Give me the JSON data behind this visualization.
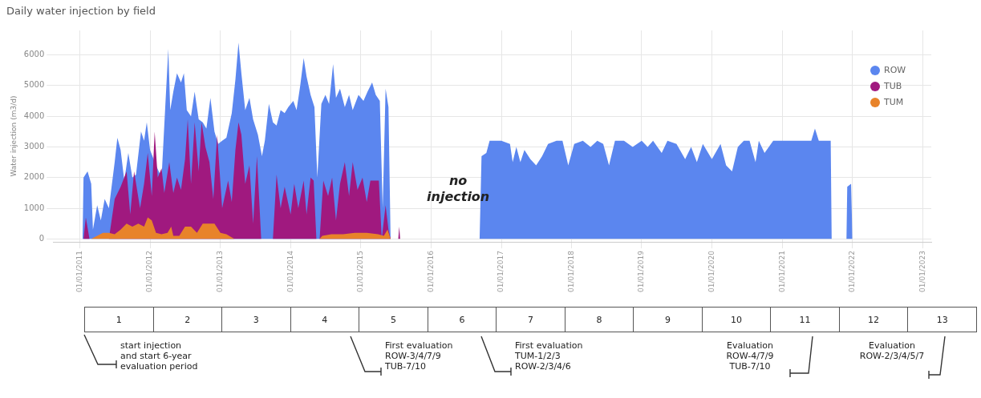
{
  "chart_data": {
    "type": "area",
    "title": "Daily water injection by field",
    "ylabel": "Water injection (m3/d)",
    "xlim": [
      "2010-08-15",
      "2023-02-15"
    ],
    "xticks": [
      {
        "value": "2011-01-01",
        "label": "01/01/2011"
      },
      {
        "value": "2012-01-01",
        "label": "01/01/2012"
      },
      {
        "value": "2013-01-01",
        "label": "01/01/2013"
      },
      {
        "value": "2014-01-01",
        "label": "01/01/2014"
      },
      {
        "value": "2015-01-01",
        "label": "01/01/2015"
      },
      {
        "value": "2016-01-01",
        "label": "01/01/2016"
      },
      {
        "value": "2017-01-01",
        "label": "01/01/2017"
      },
      {
        "value": "2018-01-01",
        "label": "01/01/2018"
      },
      {
        "value": "2019-01-01",
        "label": "01/01/2019"
      },
      {
        "value": "2020-01-01",
        "label": "01/01/2020"
      },
      {
        "value": "2021-01-01",
        "label": "01/01/2021"
      },
      {
        "value": "2022-01-01",
        "label": "01/01/2022"
      },
      {
        "value": "2023-01-01",
        "label": "01/01/2023"
      }
    ],
    "ylim": [
      -100,
      6800
    ],
    "yticks": [
      0,
      1000,
      2000,
      3000,
      4000,
      5000,
      6000
    ],
    "grid": true,
    "legend": "top right",
    "annotations": [
      "no\ninjection",
      "1",
      "2",
      "3",
      "4",
      "5",
      "6",
      "7",
      "8",
      "9",
      "10",
      "11",
      "12",
      "13",
      "start injection\nand start 6-year\nevaluation period",
      "First evaluation\nROW-3/4/7/9\nTUB-7/10",
      "First evaluation\nTUM-1/2/3\nROW-2/3/4/6",
      "Evaluation\nROW-4/7/9\nTUB-7/10",
      "Evaluation\nROW-2/3/4/5/7"
    ],
    "series": [
      {
        "name": "ROW",
        "color": "#5b86ef",
        "x": [
          "2011-01-15",
          "2011-01-20",
          "2011-02-10",
          "2011-03-01",
          "2011-03-10",
          "2011-04-01",
          "2011-04-20",
          "2011-05-10",
          "2011-06-01",
          "2011-07-01",
          "2011-07-15",
          "2011-08-01",
          "2011-08-20",
          "2011-09-10",
          "2011-10-01",
          "2011-10-20",
          "2011-11-15",
          "2011-12-01",
          "2011-12-15",
          "2012-01-01",
          "2012-02-01",
          "2012-03-01",
          "2012-03-20",
          "2012-04-05",
          "2012-04-15",
          "2012-05-01",
          "2012-05-20",
          "2012-06-10",
          "2012-06-25",
          "2012-07-10",
          "2012-08-01",
          "2012-08-20",
          "2012-09-10",
          "2012-10-01",
          "2012-10-20",
          "2012-11-10",
          "2012-12-01",
          "2012-12-20",
          "2013-01-10",
          "2013-02-01",
          "2013-03-01",
          "2013-03-20",
          "2013-04-05",
          "2013-04-20",
          "2013-05-10",
          "2013-06-01",
          "2013-06-20",
          "2013-07-15",
          "2013-08-05",
          "2013-08-20",
          "2013-09-10",
          "2013-10-01",
          "2013-10-20",
          "2013-11-10",
          "2013-12-01",
          "2013-12-20",
          "2014-01-15",
          "2014-02-01",
          "2014-02-20",
          "2014-03-10",
          "2014-03-25",
          "2014-04-15",
          "2014-05-05",
          "2014-05-20",
          "2014-06-10",
          "2014-07-01",
          "2014-07-20",
          "2014-08-10",
          "2014-08-25",
          "2014-09-15",
          "2014-10-10",
          "2014-11-01",
          "2014-11-20",
          "2014-12-20",
          "2015-01-15",
          "2015-02-05",
          "2015-03-01",
          "2015-03-20",
          "2015-04-10",
          "2015-04-25",
          "2015-05-10",
          "2015-05-25",
          "2015-06-05",
          "2016-09-10",
          "2016-09-20",
          "2016-10-15",
          "2016-11-01",
          "2016-12-15",
          "2017-01-01",
          "2017-02-15",
          "2017-03-01",
          "2017-03-20",
          "2017-04-10",
          "2017-05-01",
          "2017-06-01",
          "2017-07-01",
          "2017-08-01",
          "2017-09-01",
          "2017-10-15",
          "2017-11-15",
          "2017-12-15",
          "2018-01-15",
          "2018-03-01",
          "2018-04-10",
          "2018-05-15",
          "2018-06-15",
          "2018-07-15",
          "2018-08-15",
          "2018-10-01",
          "2018-11-15",
          "2019-01-01",
          "2019-02-01",
          "2019-03-01",
          "2019-04-15",
          "2019-05-15",
          "2019-07-01",
          "2019-08-15",
          "2019-09-15",
          "2019-10-15",
          "2019-11-15",
          "2020-01-01",
          "2020-02-15",
          "2020-03-15",
          "2020-04-15",
          "2020-05-15",
          "2020-06-15",
          "2020-07-15",
          "2020-08-15",
          "2020-09-01",
          "2020-10-01",
          "2020-11-15",
          "2021-01-01",
          "2021-03-01",
          "2021-05-01",
          "2021-06-01",
          "2021-06-20",
          "2021-07-10",
          "2021-08-15",
          "2021-09-10",
          "2021-09-15",
          "2021-12-01",
          "2021-12-05",
          "2021-12-25",
          "2022-01-01"
        ],
        "values": [
          0,
          2000,
          2200,
          1800,
          300,
          1100,
          600,
          1300,
          1000,
          2500,
          3300,
          2900,
          1900,
          2800,
          2000,
          2100,
          3500,
          3200,
          3800,
          2900,
          2400,
          2000,
          4300,
          6200,
          4200,
          4800,
          5400,
          5100,
          5400,
          4200,
          4000,
          4800,
          3900,
          3800,
          3600,
          4600,
          3500,
          3100,
          3200,
          3300,
          4100,
          5200,
          6400,
          5400,
          4200,
          4600,
          3900,
          3400,
          2700,
          3200,
          4400,
          3800,
          3700,
          4200,
          4100,
          4300,
          4500,
          4200,
          5000,
          5900,
          5300,
          4700,
          4300,
          2000,
          4400,
          4700,
          4400,
          5700,
          4600,
          4900,
          4300,
          4700,
          4200,
          4700,
          4500,
          4800,
          5100,
          4700,
          4500,
          1000,
          4900,
          4300,
          0,
          0,
          2700,
          2800,
          3200,
          3200,
          3200,
          3100,
          2500,
          3000,
          2500,
          2900,
          2600,
          2400,
          2700,
          3100,
          3200,
          3200,
          2400,
          3100,
          3200,
          3000,
          3200,
          3100,
          2400,
          3200,
          3200,
          3000,
          3200,
          3000,
          3200,
          2800,
          3200,
          3100,
          2600,
          3000,
          2500,
          3100,
          2600,
          3100,
          2400,
          2200,
          3000,
          3200,
          3200,
          2500,
          3200,
          2800,
          3200,
          3200,
          3200,
          3200,
          3200,
          3600,
          3200,
          3200,
          3200,
          0,
          0,
          1700,
          1800,
          0
        ]
      },
      {
        "name": "TUB",
        "color": "#a0197f",
        "x": [
          "2011-01-20",
          "2011-02-01",
          "2011-02-20",
          "2011-06-01",
          "2011-07-01",
          "2011-08-01",
          "2011-09-01",
          "2011-09-20",
          "2011-10-10",
          "2011-11-10",
          "2011-12-01",
          "2011-12-20",
          "2012-01-10",
          "2012-01-25",
          "2012-02-10",
          "2012-03-01",
          "2012-03-15",
          "2012-04-10",
          "2012-05-01",
          "2012-05-20",
          "2012-06-10",
          "2012-07-01",
          "2012-07-15",
          "2012-08-01",
          "2012-08-20",
          "2012-09-10",
          "2012-09-25",
          "2012-10-15",
          "2012-11-05",
          "2012-11-25",
          "2012-12-15",
          "2013-01-10",
          "2013-02-10",
          "2013-03-01",
          "2013-03-20",
          "2013-04-05",
          "2013-04-20",
          "2013-05-10",
          "2013-06-01",
          "2013-06-20",
          "2013-07-10",
          "2013-08-01",
          "2013-10-01",
          "2013-10-20",
          "2013-11-10",
          "2013-12-01",
          "2014-01-01",
          "2014-01-20",
          "2014-02-10",
          "2014-03-10",
          "2014-03-25",
          "2014-04-15",
          "2014-05-01",
          "2014-05-15",
          "2014-06-01",
          "2014-06-20",
          "2014-07-15",
          "2014-08-05",
          "2014-08-25",
          "2014-09-15",
          "2014-10-10",
          "2014-11-01",
          "2014-11-20",
          "2014-12-15",
          "2015-01-10",
          "2015-02-01",
          "2015-02-20",
          "2015-03-15",
          "2015-04-05",
          "2015-04-20",
          "2015-05-10",
          "2015-05-25",
          "2015-06-05",
          "2015-07-15",
          "2015-07-20",
          "2015-07-25"
        ],
        "values": [
          0,
          700,
          0,
          0,
          1300,
          1700,
          2200,
          800,
          2200,
          1000,
          1800,
          2800,
          1400,
          3500,
          2000,
          2300,
          1500,
          2500,
          1500,
          2000,
          1600,
          2600,
          3900,
          1800,
          3800,
          2200,
          3800,
          3000,
          2500,
          1300,
          3400,
          1000,
          1900,
          1200,
          2900,
          3800,
          3400,
          1800,
          2400,
          500,
          2700,
          0,
          0,
          2100,
          1000,
          1700,
          800,
          1800,
          1000,
          1900,
          800,
          2000,
          1900,
          0,
          0,
          1900,
          1400,
          2000,
          600,
          1800,
          2500,
          1400,
          2500,
          1600,
          2000,
          1200,
          1900,
          1900,
          1900,
          0,
          1100,
          300,
          0,
          0,
          400,
          0
        ]
      },
      {
        "name": "TUM",
        "color": "#e8832a",
        "x": [
          "2011-03-01",
          "2011-04-01",
          "2011-05-01",
          "2011-06-01",
          "2011-07-01",
          "2011-08-01",
          "2011-09-01",
          "2011-10-01",
          "2011-11-01",
          "2011-12-01",
          "2011-12-20",
          "2012-01-10",
          "2012-02-01",
          "2012-03-01",
          "2012-04-01",
          "2012-04-20",
          "2012-05-01",
          "2012-06-01",
          "2012-07-01",
          "2012-08-01",
          "2012-09-01",
          "2012-10-01",
          "2012-11-01",
          "2012-12-01",
          "2013-01-01",
          "2013-02-01",
          "2013-03-01",
          "2013-03-15",
          "2014-06-01",
          "2014-06-15",
          "2014-08-01",
          "2014-10-01",
          "2014-12-01",
          "2015-02-01",
          "2015-04-01",
          "2015-05-01",
          "2015-05-20",
          "2015-06-05"
        ],
        "values": [
          0,
          100,
          200,
          200,
          150,
          300,
          500,
          400,
          500,
          400,
          700,
          600,
          200,
          150,
          200,
          400,
          100,
          100,
          400,
          400,
          200,
          500,
          500,
          500,
          200,
          150,
          50,
          0,
          0,
          100,
          150,
          150,
          200,
          200,
          150,
          100,
          300,
          0
        ]
      }
    ]
  }
}
